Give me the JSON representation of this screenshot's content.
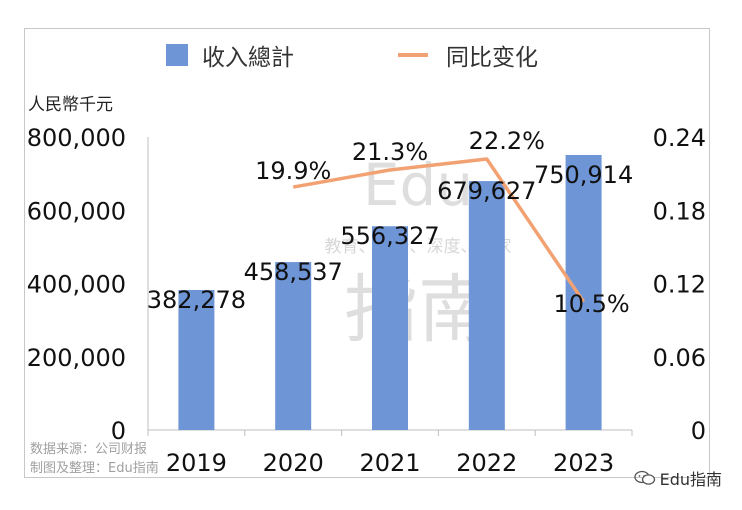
{
  "chart_data": {
    "type": "bar+line",
    "categories": [
      "2019",
      "2020",
      "2021",
      "2022",
      "2023"
    ],
    "bar_series": {
      "name": "收入總計",
      "values": [
        382278,
        458537,
        556327,
        679627,
        750914
      ],
      "labels": [
        "382,278",
        "458,537",
        "556,327",
        "679,627",
        "750,914"
      ],
      "color": "#6e95d6"
    },
    "line_series": {
      "name": "同比变化",
      "x": [
        "2020",
        "2021",
        "2022",
        "2023"
      ],
      "values": [
        0.199,
        0.213,
        0.222,
        0.105
      ],
      "labels": [
        "19.9%",
        "21.3%",
        "22.2%",
        "10.5%"
      ],
      "color": "#f2a272"
    },
    "ylabel": "人民幣千元",
    "y_left": {
      "min": 0,
      "max": 800000,
      "ticks": [
        "0",
        "200,000",
        "400,000",
        "600,000",
        "800,000"
      ]
    },
    "y_right": {
      "min": 0,
      "max": 0.24,
      "ticks": [
        "0",
        "0.06",
        "0.12",
        "0.18",
        "0.24"
      ]
    },
    "grid": false,
    "legend": "top"
  },
  "watermark": {
    "brand": "Edu",
    "tagline": "教育、前沿、深度、独家",
    "name": "指南"
  },
  "source": {
    "line1": "数据来源：公司财报",
    "line2": "制图及整理：Edu指南"
  },
  "footer": {
    "account": "Edu指南"
  }
}
